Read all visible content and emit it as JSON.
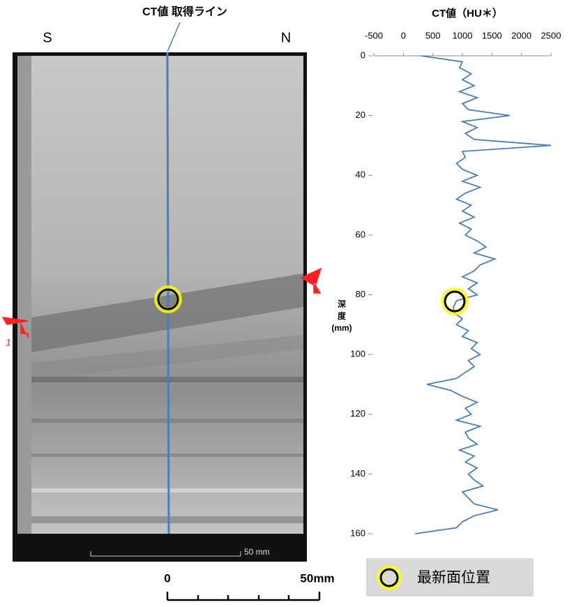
{
  "image_title": "CT値 取得ライン",
  "left_label": "S",
  "right_label": "N",
  "image_scale_label": "50 mm",
  "scale_start_label": "0",
  "scale_end_label": "50mm",
  "marker_label": "1",
  "legend_label": "最新面位置",
  "chart_data": {
    "type": "line",
    "title": "CT値（HU＊）",
    "y_label": [
      "深",
      "度",
      "(mm)"
    ],
    "color": "#4a7ebb",
    "xlim": [
      -500,
      2500
    ],
    "xticks": [
      -500,
      0,
      500,
      1000,
      1500,
      2000,
      2500
    ],
    "ylim": [
      0,
      160
    ],
    "yticks": [
      0,
      20,
      40,
      60,
      80,
      100,
      120,
      140,
      160
    ],
    "y": [
      0,
      2,
      4,
      6,
      8,
      10,
      12,
      14,
      16,
      18,
      20,
      22,
      24,
      26,
      28,
      30,
      32,
      34,
      36,
      38,
      40,
      42,
      44,
      46,
      48,
      50,
      52,
      54,
      56,
      58,
      60,
      62,
      64,
      66,
      68,
      70,
      72,
      74,
      76,
      78,
      80,
      82,
      84,
      86,
      88,
      90,
      92,
      94,
      96,
      98,
      100,
      102,
      104,
      106,
      108,
      110,
      112,
      114,
      116,
      118,
      120,
      122,
      124,
      126,
      128,
      130,
      132,
      134,
      136,
      138,
      140,
      142,
      144,
      146,
      148,
      150,
      152,
      154,
      156,
      158,
      160
    ],
    "values": [
      300,
      1000,
      950,
      1150,
      1000,
      1200,
      950,
      1250,
      1000,
      1100,
      1800,
      1000,
      1250,
      1050,
      1200,
      2500,
      1000,
      1050,
      900,
      1000,
      1250,
      1000,
      1300,
      1050,
      900,
      1150,
      1000,
      1200,
      950,
      1150,
      1050,
      1250,
      1400,
      1200,
      1550,
      1300,
      1200,
      1000,
      1250,
      1100,
      1250,
      900,
      850,
      850,
      1000,
      900,
      1100,
      1000,
      1250,
      1150,
      1300,
      1100,
      1200,
      1050,
      900,
      400,
      800,
      1000,
      1250,
      1050,
      1150,
      900,
      1300,
      1050,
      1100,
      1250,
      950,
      1200,
      1050,
      1250,
      1100,
      1200,
      1350,
      1000,
      1100,
      1200,
      1600,
      1200,
      1000,
      900,
      200
    ]
  }
}
